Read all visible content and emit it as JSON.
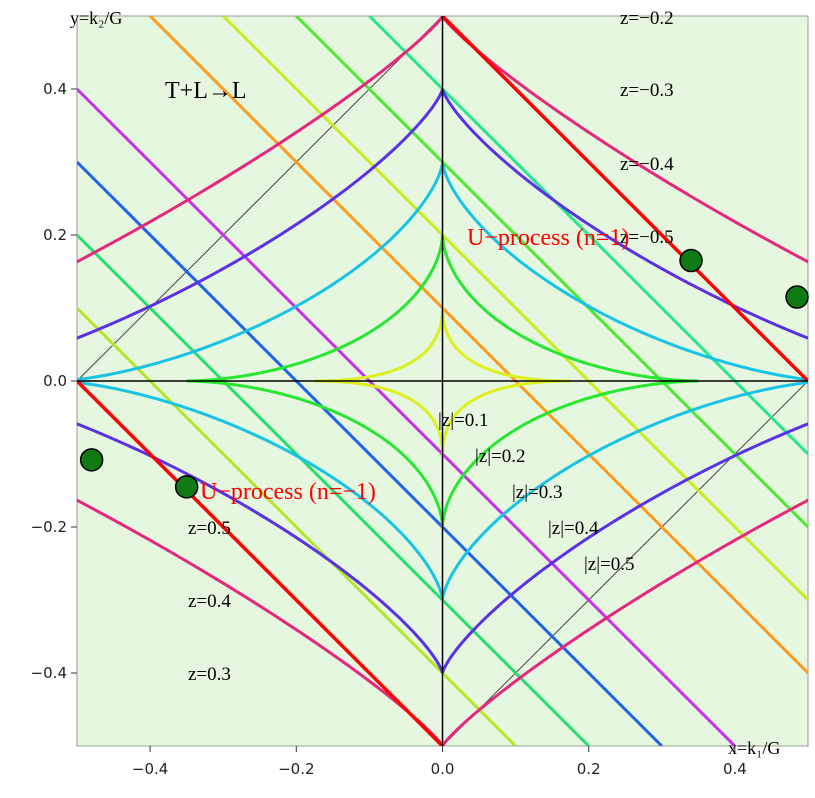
{
  "chart_data": {
    "type": "line",
    "title": "T+L→L",
    "xlabel": "x=k₁/G",
    "ylabel": "y=k₂/G",
    "xlim": [
      -0.5,
      0.5
    ],
    "ylim": [
      -0.5,
      0.5
    ],
    "xticks": [
      -0.4,
      -0.2,
      0.0,
      0.2,
      0.4
    ],
    "xtick_labels": [
      "−0.4",
      "−0.2",
      "0.0",
      "0.2",
      "0.4"
    ],
    "yticks": [
      -0.4,
      -0.2,
      0.0,
      0.2,
      0.4
    ],
    "ytick_labels": [
      "−0.4",
      "−0.2",
      "0.0",
      "0.2",
      "0.4"
    ],
    "background_color": "#e6f7e0",
    "contour_levels": [
      {
        "label": "|z|=0.1",
        "z": 0.1,
        "color": "#dcf01e"
      },
      {
        "label": "|z|=0.2",
        "z": 0.2,
        "color": "#28e632"
      },
      {
        "label": "|z|=0.3",
        "z": 0.3,
        "color": "#19c3e6"
      },
      {
        "label": "|z|=0.4",
        "z": 0.4,
        "color": "#5a32e6"
      },
      {
        "label": "|z|=0.5",
        "z": 0.5,
        "color": "#e6287d"
      }
    ],
    "diagonal_lines_upper_right": [
      {
        "label": "z=−0.2",
        "x_intercept": 0.1,
        "color": "#ff9a1e"
      },
      {
        "label": "z=−0.3",
        "x_intercept": 0.2,
        "color": "#c8ec1e"
      },
      {
        "label": "z=−0.4",
        "x_intercept": 0.3,
        "color": "#50e632"
      },
      {
        "label": "z=−0.5",
        "x_intercept": 0.4,
        "color": "#28e68c"
      }
    ],
    "diagonal_lines_lower_left": [
      {
        "label": "z=0.5",
        "x_intercept": -0.1,
        "color": "#c832e6"
      },
      {
        "label": "z=0.4",
        "x_intercept": -0.2,
        "color": "#1e64e6"
      },
      {
        "label": "z=0.3",
        "x_intercept": -0.3,
        "color": "#28dc6e"
      },
      {
        "label": "",
        "x_intercept": -0.4,
        "color": "#b4e628"
      }
    ],
    "u_process_lines": [
      {
        "label": "U−process (n=1)",
        "x_intercept": 0.5,
        "color": "#ff0000"
      },
      {
        "label": "U−process (n=−1)",
        "x_intercept": -0.5,
        "color": "#ff0000"
      }
    ],
    "points": [
      {
        "x": 0.34,
        "y": 0.165
      },
      {
        "x": 0.485,
        "y": 0.115
      },
      {
        "x": -0.35,
        "y": -0.145
      },
      {
        "x": -0.48,
        "y": -0.108
      }
    ],
    "level_labels": [
      "|z|=0.1",
      "|z|=0.2",
      "|z|=0.3",
      "|z|=0.4",
      "|z|=0.5"
    ],
    "upper_labels": [
      "z=−0.2",
      "z=−0.3",
      "z=−0.4",
      "z=−0.5"
    ],
    "lower_labels": [
      "z=0.5",
      "z=0.4",
      "z=0.3"
    ],
    "u_labels": [
      "U−process (n=1)",
      "U−process (n=−1)"
    ]
  }
}
